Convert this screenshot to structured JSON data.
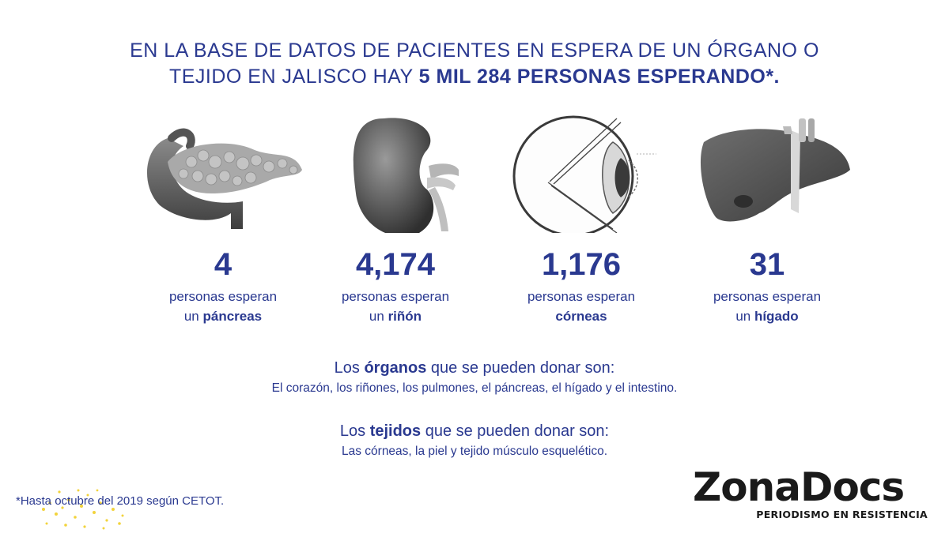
{
  "headline": {
    "line1": "EN LA BASE DE DATOS DE PACIENTES EN ESPERA DE UN ÓRGANO O",
    "line2_prefix": "TEJIDO EN JALISCO HAY ",
    "line2_bold": "5 MIL 284 PERSONAS ESPERANDO*."
  },
  "organs": [
    {
      "icon": "pancreas-icon",
      "count": "4",
      "line1": "personas esperan",
      "line2_prefix": "un ",
      "line2_bold": "páncreas"
    },
    {
      "icon": "kidney-icon",
      "count": "4,174",
      "line1": "personas esperan",
      "line2_prefix": "un ",
      "line2_bold": "riñón"
    },
    {
      "icon": "eye-cornea-icon",
      "count": "1,176",
      "line1": "personas esperan",
      "line2_prefix": "",
      "line2_bold": "córneas"
    },
    {
      "icon": "liver-icon",
      "count": "31",
      "line1": "personas esperan",
      "line2_prefix": "un ",
      "line2_bold": "hígado"
    }
  ],
  "organs_info": {
    "prefix": "Los ",
    "bold": "órganos",
    "suffix": " que se pueden donar son:",
    "list": "El corazón, los riñones, los pulmones, el páncreas, el hígado y el intestino."
  },
  "tissues_info": {
    "prefix": "Los ",
    "bold": "tejidos",
    "suffix": " que se pueden donar son:",
    "list": "Las córneas, la piel y tejido músculo esquelético."
  },
  "footnote": "*Hasta octubre del 2019 según CETOT.",
  "logo": {
    "main": "ZonaDocs",
    "sub": "PERIODISMO EN RESISTENCIA"
  },
  "colors": {
    "text": "#2a3990",
    "dots": "#f2d33c",
    "logo": "#1a1a1a"
  }
}
